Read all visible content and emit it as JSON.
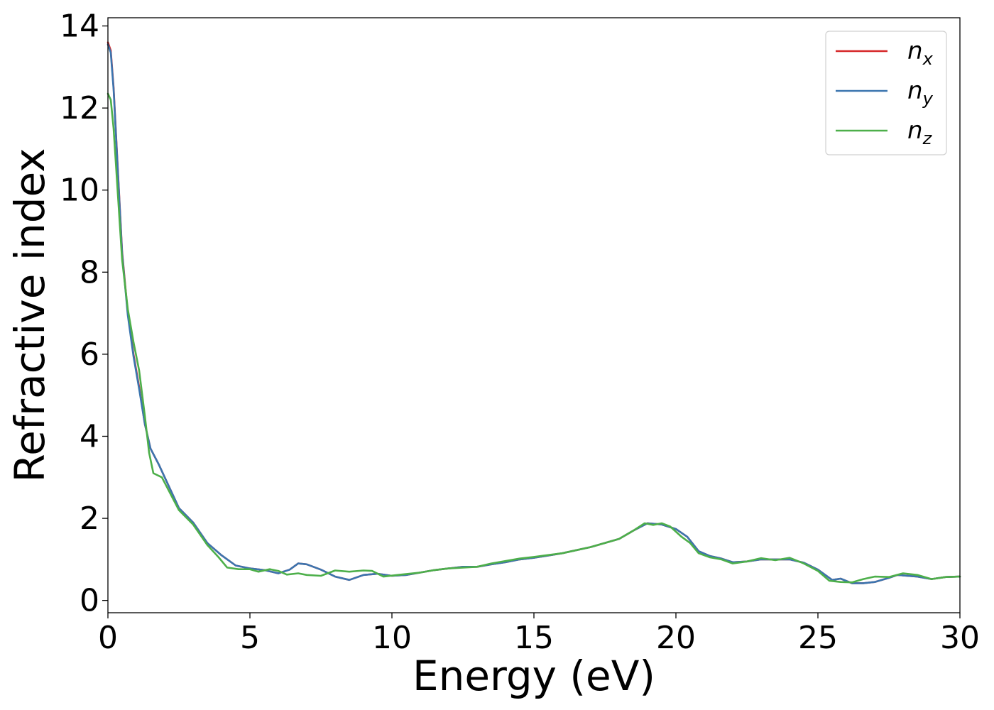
{
  "chart_data": {
    "type": "line",
    "title": "",
    "xlabel": "Energy (eV)",
    "ylabel": "Refractive index",
    "xlim": [
      0,
      30
    ],
    "ylim": [
      -0.3,
      14.2
    ],
    "xticks": [
      "0",
      "5",
      "10",
      "15",
      "20",
      "25",
      "30"
    ],
    "yticks": [
      "0",
      "2",
      "4",
      "6",
      "8",
      "10",
      "12",
      "14"
    ],
    "grid": false,
    "legend_position": "top-right",
    "series": [
      {
        "name": "n",
        "subscript": "x",
        "color": "#d62728",
        "points": [
          [
            0,
            13.6
          ],
          [
            0.1,
            13.4
          ],
          [
            0.2,
            12.5
          ],
          [
            0.35,
            10.5
          ],
          [
            0.5,
            8.5
          ],
          [
            0.7,
            7.0
          ],
          [
            0.9,
            6.0
          ],
          [
            1.1,
            5.2
          ],
          [
            1.3,
            4.3
          ],
          [
            1.5,
            3.7
          ],
          [
            1.8,
            3.3
          ],
          [
            2.0,
            3.0
          ],
          [
            2.5,
            2.25
          ],
          [
            3.0,
            1.9
          ],
          [
            3.5,
            1.4
          ],
          [
            4.0,
            1.1
          ],
          [
            4.5,
            0.85
          ],
          [
            5.0,
            0.78
          ],
          [
            5.5,
            0.74
          ],
          [
            6.0,
            0.66
          ],
          [
            6.4,
            0.75
          ],
          [
            6.7,
            0.9
          ],
          [
            7.0,
            0.88
          ],
          [
            7.5,
            0.75
          ],
          [
            8.0,
            0.58
          ],
          [
            8.5,
            0.5
          ],
          [
            9.0,
            0.62
          ],
          [
            9.5,
            0.65
          ],
          [
            10.0,
            0.6
          ],
          [
            10.5,
            0.62
          ],
          [
            11.0,
            0.68
          ],
          [
            11.5,
            0.74
          ],
          [
            12.0,
            0.78
          ],
          [
            12.5,
            0.82
          ],
          [
            13.0,
            0.82
          ],
          [
            13.5,
            0.88
          ],
          [
            14.0,
            0.93
          ],
          [
            14.5,
            1.0
          ],
          [
            15.0,
            1.04
          ],
          [
            16.0,
            1.15
          ],
          [
            17.0,
            1.3
          ],
          [
            18.0,
            1.5
          ],
          [
            18.5,
            1.7
          ],
          [
            19.0,
            1.88
          ],
          [
            19.5,
            1.85
          ],
          [
            20.0,
            1.74
          ],
          [
            20.4,
            1.55
          ],
          [
            20.8,
            1.2
          ],
          [
            21.2,
            1.08
          ],
          [
            21.6,
            1.02
          ],
          [
            22.0,
            0.93
          ],
          [
            22.5,
            0.95
          ],
          [
            23.0,
            1.0
          ],
          [
            23.5,
            1.0
          ],
          [
            24.0,
            1.0
          ],
          [
            24.5,
            0.92
          ],
          [
            25.0,
            0.75
          ],
          [
            25.5,
            0.5
          ],
          [
            25.8,
            0.53
          ],
          [
            26.2,
            0.42
          ],
          [
            26.6,
            0.42
          ],
          [
            27.0,
            0.45
          ],
          [
            27.5,
            0.55
          ],
          [
            27.8,
            0.62
          ],
          [
            28.5,
            0.58
          ],
          [
            29.0,
            0.52
          ],
          [
            29.5,
            0.57
          ],
          [
            30.0,
            0.58
          ]
        ]
      },
      {
        "name": "n",
        "subscript": "y",
        "color": "#3b75af",
        "points": [
          [
            0,
            13.55
          ],
          [
            0.1,
            13.35
          ],
          [
            0.2,
            12.45
          ],
          [
            0.35,
            10.45
          ],
          [
            0.5,
            8.45
          ],
          [
            0.7,
            6.95
          ],
          [
            0.9,
            5.95
          ],
          [
            1.1,
            5.15
          ],
          [
            1.3,
            4.3
          ],
          [
            1.5,
            3.7
          ],
          [
            1.8,
            3.3
          ],
          [
            2.0,
            3.0
          ],
          [
            2.5,
            2.25
          ],
          [
            3.0,
            1.9
          ],
          [
            3.5,
            1.4
          ],
          [
            4.0,
            1.1
          ],
          [
            4.5,
            0.85
          ],
          [
            5.0,
            0.78
          ],
          [
            5.5,
            0.74
          ],
          [
            6.0,
            0.66
          ],
          [
            6.4,
            0.75
          ],
          [
            6.7,
            0.9
          ],
          [
            7.0,
            0.88
          ],
          [
            7.5,
            0.75
          ],
          [
            8.0,
            0.58
          ],
          [
            8.5,
            0.5
          ],
          [
            9.0,
            0.62
          ],
          [
            9.5,
            0.65
          ],
          [
            10.0,
            0.6
          ],
          [
            10.5,
            0.62
          ],
          [
            11.0,
            0.68
          ],
          [
            11.5,
            0.74
          ],
          [
            12.0,
            0.78
          ],
          [
            12.5,
            0.82
          ],
          [
            13.0,
            0.82
          ],
          [
            13.5,
            0.88
          ],
          [
            14.0,
            0.93
          ],
          [
            14.5,
            1.0
          ],
          [
            15.0,
            1.04
          ],
          [
            16.0,
            1.15
          ],
          [
            17.0,
            1.3
          ],
          [
            18.0,
            1.5
          ],
          [
            18.5,
            1.7
          ],
          [
            19.0,
            1.88
          ],
          [
            19.5,
            1.85
          ],
          [
            20.0,
            1.74
          ],
          [
            20.4,
            1.55
          ],
          [
            20.8,
            1.2
          ],
          [
            21.2,
            1.08
          ],
          [
            21.6,
            1.02
          ],
          [
            22.0,
            0.93
          ],
          [
            22.5,
            0.95
          ],
          [
            23.0,
            1.0
          ],
          [
            23.5,
            1.0
          ],
          [
            24.0,
            1.0
          ],
          [
            24.5,
            0.92
          ],
          [
            25.0,
            0.75
          ],
          [
            25.5,
            0.5
          ],
          [
            25.8,
            0.53
          ],
          [
            26.2,
            0.42
          ],
          [
            26.6,
            0.42
          ],
          [
            27.0,
            0.45
          ],
          [
            27.5,
            0.55
          ],
          [
            27.8,
            0.62
          ],
          [
            28.5,
            0.58
          ],
          [
            29.0,
            0.52
          ],
          [
            29.5,
            0.57
          ],
          [
            30.0,
            0.58
          ]
        ]
      },
      {
        "name": "n",
        "subscript": "z",
        "color": "#4daf4a",
        "points": [
          [
            0,
            12.35
          ],
          [
            0.1,
            12.2
          ],
          [
            0.2,
            11.5
          ],
          [
            0.35,
            9.9
          ],
          [
            0.5,
            8.3
          ],
          [
            0.7,
            7.1
          ],
          [
            0.9,
            6.3
          ],
          [
            1.1,
            5.6
          ],
          [
            1.3,
            4.5
          ],
          [
            1.45,
            3.6
          ],
          [
            1.6,
            3.1
          ],
          [
            1.9,
            3.0
          ],
          [
            2.2,
            2.6
          ],
          [
            2.5,
            2.2
          ],
          [
            3.0,
            1.85
          ],
          [
            3.5,
            1.35
          ],
          [
            3.9,
            1.05
          ],
          [
            4.2,
            0.8
          ],
          [
            4.6,
            0.76
          ],
          [
            5.0,
            0.76
          ],
          [
            5.3,
            0.7
          ],
          [
            5.7,
            0.76
          ],
          [
            6.0,
            0.72
          ],
          [
            6.3,
            0.63
          ],
          [
            6.7,
            0.66
          ],
          [
            7.0,
            0.62
          ],
          [
            7.5,
            0.6
          ],
          [
            8.0,
            0.73
          ],
          [
            8.5,
            0.7
          ],
          [
            9.0,
            0.73
          ],
          [
            9.3,
            0.72
          ],
          [
            9.7,
            0.58
          ],
          [
            10.2,
            0.62
          ],
          [
            11.0,
            0.68
          ],
          [
            11.5,
            0.74
          ],
          [
            12.0,
            0.78
          ],
          [
            12.5,
            0.8
          ],
          [
            13.0,
            0.82
          ],
          [
            13.5,
            0.9
          ],
          [
            14.0,
            0.96
          ],
          [
            14.5,
            1.02
          ],
          [
            15.0,
            1.06
          ],
          [
            16.0,
            1.15
          ],
          [
            17.0,
            1.3
          ],
          [
            18.0,
            1.5
          ],
          [
            18.5,
            1.7
          ],
          [
            18.9,
            1.88
          ],
          [
            19.2,
            1.84
          ],
          [
            19.5,
            1.88
          ],
          [
            19.8,
            1.8
          ],
          [
            20.2,
            1.55
          ],
          [
            20.5,
            1.4
          ],
          [
            20.8,
            1.15
          ],
          [
            21.2,
            1.05
          ],
          [
            21.6,
            1.0
          ],
          [
            22.0,
            0.9
          ],
          [
            22.5,
            0.95
          ],
          [
            23.0,
            1.03
          ],
          [
            23.5,
            0.98
          ],
          [
            24.0,
            1.04
          ],
          [
            24.5,
            0.9
          ],
          [
            25.0,
            0.72
          ],
          [
            25.4,
            0.48
          ],
          [
            25.8,
            0.45
          ],
          [
            26.2,
            0.44
          ],
          [
            26.6,
            0.52
          ],
          [
            27.0,
            0.58
          ],
          [
            27.5,
            0.57
          ],
          [
            28.0,
            0.66
          ],
          [
            28.5,
            0.62
          ],
          [
            29.0,
            0.52
          ],
          [
            29.5,
            0.57
          ],
          [
            30.0,
            0.58
          ]
        ]
      }
    ]
  }
}
